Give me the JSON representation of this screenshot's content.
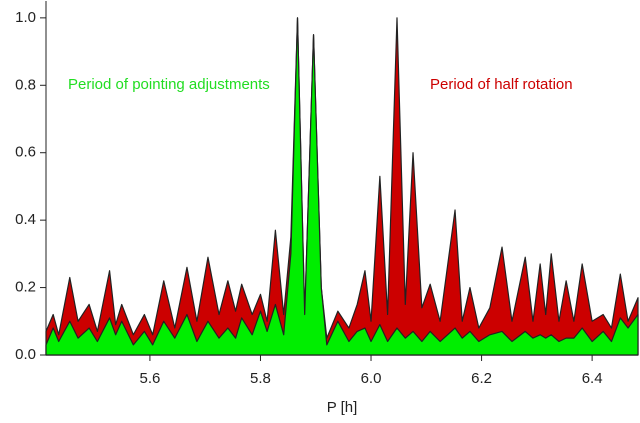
{
  "chart_data": {
    "type": "area",
    "xlabel": "P [h]",
    "annotations": [
      {
        "text": "Period of pointing adjustments",
        "color": "#22dd22"
      },
      {
        "text": "Period of half rotation",
        "color": "#cc0000"
      }
    ],
    "x": [
      5.412,
      5.425,
      5.435,
      5.455,
      5.47,
      5.49,
      5.505,
      5.527,
      5.538,
      5.549,
      5.57,
      5.59,
      5.605,
      5.625,
      5.645,
      5.667,
      5.685,
      5.705,
      5.725,
      5.741,
      5.755,
      5.766,
      5.785,
      5.8,
      5.812,
      5.827,
      5.842,
      5.855,
      5.867,
      5.88,
      5.896,
      5.91,
      5.92,
      5.94,
      5.96,
      5.975,
      5.989,
      6.0,
      6.016,
      6.03,
      6.047,
      6.062,
      6.076,
      6.092,
      6.107,
      6.125,
      6.152,
      6.165,
      6.179,
      6.195,
      6.215,
      6.237,
      6.255,
      6.279,
      6.293,
      6.306,
      6.316,
      6.326,
      6.34,
      6.353,
      6.367,
      6.382,
      6.4,
      6.42,
      6.435,
      6.451,
      6.465,
      6.483
    ],
    "series": [
      {
        "color": "#cc0000",
        "values": [
          0.07,
          0.12,
          0.06,
          0.23,
          0.1,
          0.15,
          0.07,
          0.25,
          0.09,
          0.15,
          0.06,
          0.12,
          0.06,
          0.22,
          0.08,
          0.26,
          0.1,
          0.29,
          0.12,
          0.22,
          0.13,
          0.21,
          0.12,
          0.18,
          0.1,
          0.37,
          0.12,
          0.35,
          1.0,
          0.12,
          0.95,
          0.2,
          0.05,
          0.13,
          0.08,
          0.15,
          0.25,
          0.1,
          0.53,
          0.12,
          1.0,
          0.15,
          0.6,
          0.14,
          0.21,
          0.1,
          0.43,
          0.1,
          0.2,
          0.08,
          0.14,
          0.32,
          0.1,
          0.29,
          0.1,
          0.27,
          0.12,
          0.3,
          0.1,
          0.22,
          0.1,
          0.27,
          0.1,
          0.12,
          0.08,
          0.24,
          0.1,
          0.17
        ]
      },
      {
        "color": "#00ee00",
        "values": [
          0.03,
          0.08,
          0.04,
          0.1,
          0.05,
          0.08,
          0.04,
          0.11,
          0.06,
          0.1,
          0.03,
          0.07,
          0.03,
          0.1,
          0.05,
          0.12,
          0.04,
          0.1,
          0.05,
          0.08,
          0.05,
          0.11,
          0.06,
          0.13,
          0.07,
          0.15,
          0.06,
          0.3,
          1.0,
          0.12,
          0.95,
          0.2,
          0.03,
          0.1,
          0.04,
          0.07,
          0.08,
          0.04,
          0.09,
          0.04,
          0.08,
          0.05,
          0.07,
          0.04,
          0.07,
          0.04,
          0.08,
          0.05,
          0.07,
          0.04,
          0.06,
          0.07,
          0.04,
          0.07,
          0.05,
          0.06,
          0.05,
          0.06,
          0.04,
          0.05,
          0.05,
          0.08,
          0.04,
          0.07,
          0.04,
          0.11,
          0.08,
          0.12
        ]
      }
    ],
    "xlim": [
      5.412,
      6.483
    ],
    "ylim": [
      0,
      1.05
    ],
    "xticks": [
      5.6,
      5.8,
      {
        "value": 6.0,
        "label": "6.0"
      },
      6.2,
      6.4
    ],
    "yticks": [
      {
        "value": 0,
        "label": "0.0"
      },
      0.2,
      0.4,
      0.6,
      0.8,
      {
        "value": 1.0,
        "label": "1.0"
      }
    ]
  }
}
